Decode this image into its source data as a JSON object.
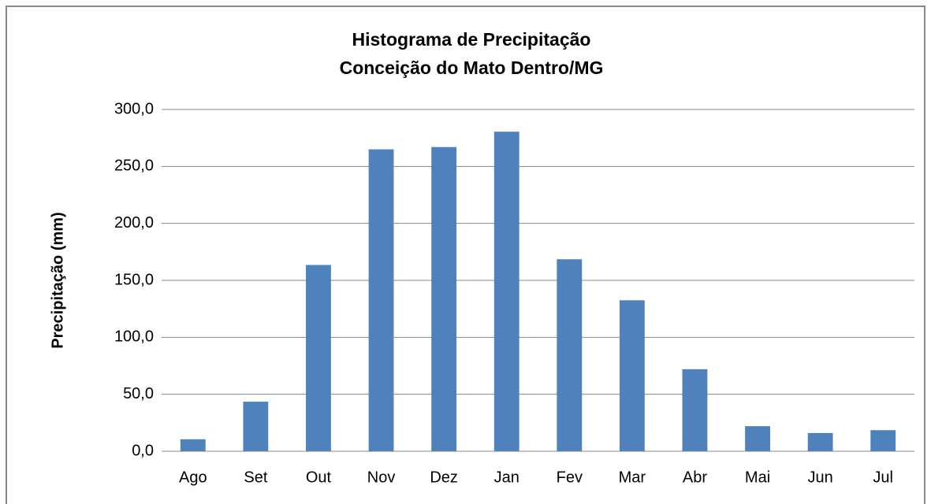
{
  "chart_data": {
    "type": "bar",
    "title": "Histograma de Precipitação",
    "subtitle": "Conceição do Mato Dentro/MG",
    "y_label": "Precipitação (mm)",
    "categories": [
      "Ago",
      "Set",
      "Out",
      "Nov",
      "Dez",
      "Jan",
      "Fev",
      "Mar",
      "Abr",
      "Mai",
      "Jun",
      "Jul"
    ],
    "values": [
      10.5,
      43.5,
      163.5,
      265,
      267,
      280.5,
      168.5,
      132.5,
      72,
      22,
      16,
      18.5
    ],
    "color": "#4f81bd",
    "ylim": [
      0,
      300
    ],
    "yticks": [
      {
        "value": 0,
        "label": "0,0"
      },
      {
        "value": 50,
        "label": "50,0"
      },
      {
        "value": 100,
        "label": "100,0"
      },
      {
        "value": 150,
        "label": "150,0"
      },
      {
        "value": 200,
        "label": "200,0"
      },
      {
        "value": 250,
        "label": "250,0"
      },
      {
        "value": 300,
        "label": "300,0"
      }
    ],
    "grid": true
  }
}
